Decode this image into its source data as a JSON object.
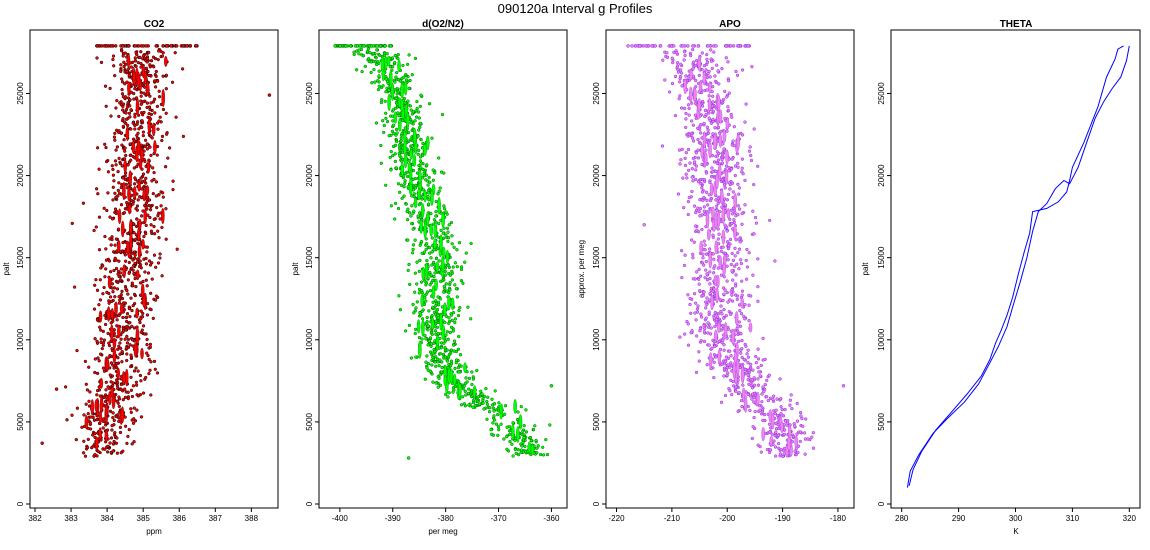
{
  "figure": {
    "title": "090120a   Interval g Profiles"
  },
  "chart_data": [
    {
      "type": "scatter",
      "title": "CO2",
      "xlabel": "ppm",
      "ylabel": "palt",
      "xlim": [
        382,
        388.6
      ],
      "ylim": [
        0,
        28500
      ],
      "xticks": [
        382,
        383,
        384,
        385,
        386,
        387,
        388
      ],
      "yticks": [
        0,
        5000,
        10000,
        15000,
        20000,
        25000
      ],
      "color": "#ff0000",
      "edge_color": "#000000",
      "grid": false,
      "n_points": 1200,
      "profile": [
        {
          "y": 28000,
          "x_center": 385.0,
          "x_spread": 0.9
        },
        {
          "y": 25000,
          "x_center": 384.9,
          "x_spread": 0.7
        },
        {
          "y": 20000,
          "x_center": 384.8,
          "x_spread": 0.75
        },
        {
          "y": 15000,
          "x_center": 384.6,
          "x_spread": 0.8
        },
        {
          "y": 10000,
          "x_center": 384.4,
          "x_spread": 0.8
        },
        {
          "y": 5000,
          "x_center": 384.0,
          "x_spread": 0.8
        },
        {
          "y": 3000,
          "x_center": 383.8,
          "x_spread": 0.6
        }
      ],
      "top_band": {
        "y": 27900,
        "x_range": [
          383.7,
          386.5
        ]
      },
      "outliers": [
        {
          "x": 388.5,
          "y": 24900
        },
        {
          "x": 382.2,
          "y": 3700
        },
        {
          "x": 382.6,
          "y": 7000
        }
      ]
    },
    {
      "type": "scatter",
      "title": "d(O2/N2)",
      "xlabel": "per meg",
      "ylabel": "palt",
      "xlim": [
        -403,
        -358
      ],
      "ylim": [
        0,
        28500
      ],
      "xticks": [
        -400,
        -390,
        -380,
        -370,
        -360
      ],
      "yticks": [
        0,
        5000,
        10000,
        15000,
        20000,
        25000
      ],
      "color": "#00ff00",
      "edge_color": "#006400",
      "grid": false,
      "n_points": 1200,
      "profile": [
        {
          "y": 28000,
          "x_center": -394,
          "x_spread": 5
        },
        {
          "y": 25000,
          "x_center": -389,
          "x_spread": 3.5
        },
        {
          "y": 20000,
          "x_center": -386,
          "x_spread": 4
        },
        {
          "y": 15000,
          "x_center": -381,
          "x_spread": 4.5
        },
        {
          "y": 10000,
          "x_center": -382,
          "x_spread": 4
        },
        {
          "y": 7500,
          "x_center": -379,
          "x_spread": 4
        },
        {
          "y": 5000,
          "x_center": -368,
          "x_spread": 4
        },
        {
          "y": 3000,
          "x_center": -364,
          "x_spread": 3
        }
      ],
      "top_band": {
        "y": 27900,
        "x_range": [
          -401,
          -390
        ]
      },
      "outliers": [
        {
          "x": -387,
          "y": 2800
        },
        {
          "x": -360,
          "y": 7200
        }
      ]
    },
    {
      "type": "scatter",
      "title": "APO",
      "xlabel": "",
      "ylabel": "approx. per meg",
      "xlim": [
        -221,
        -178
      ],
      "ylim": [
        0,
        28500
      ],
      "xticks": [
        -220,
        -210,
        -200,
        -190,
        -180
      ],
      "yticks": [
        0,
        5000,
        10000,
        15000,
        20000,
        25000
      ],
      "color": "#ee82ee",
      "edge_color": "#8a2be2",
      "grid": false,
      "n_points": 1200,
      "profile": [
        {
          "y": 28000,
          "x_center": -207,
          "x_spread": 6
        },
        {
          "y": 25000,
          "x_center": -204,
          "x_spread": 5
        },
        {
          "y": 20000,
          "x_center": -202,
          "x_spread": 5.5
        },
        {
          "y": 15000,
          "x_center": -201,
          "x_spread": 5.5
        },
        {
          "y": 10000,
          "x_center": -201,
          "x_spread": 5
        },
        {
          "y": 7000,
          "x_center": -196,
          "x_spread": 5
        },
        {
          "y": 4500,
          "x_center": -189,
          "x_spread": 5
        },
        {
          "y": 3000,
          "x_center": -190,
          "x_spread": 3
        }
      ],
      "top_band": {
        "y": 27900,
        "x_range": [
          -218,
          -196
        ]
      },
      "outliers": [
        {
          "x": -179,
          "y": 7200
        },
        {
          "x": -215,
          "y": 17000
        }
      ]
    },
    {
      "type": "line",
      "title": "THETA",
      "xlabel": "K",
      "ylabel": "palt",
      "xlim": [
        279,
        321
      ],
      "ylim": [
        0,
        28500
      ],
      "xticks": [
        280,
        290,
        300,
        310,
        320
      ],
      "yticks": [
        0,
        5000,
        10000,
        15000,
        20000,
        25000
      ],
      "color": "#0000ff",
      "grid": false,
      "series": [
        {
          "x": [
            281.0,
            281.5,
            283.0,
            285.5,
            288.0,
            291.0,
            293.5,
            295.5,
            297.0,
            298.5,
            299.5,
            300.8,
            302.0,
            303.0,
            304.0,
            305.5,
            307.0,
            308.5,
            309.5,
            311.0,
            312.5,
            314.0,
            315.5,
            317.0,
            318.5,
            319.5,
            320.0
          ],
          "y": [
            1000,
            2000,
            3000,
            4300,
            5200,
            6200,
            7300,
            8600,
            9600,
            10800,
            12000,
            13500,
            15000,
            16600,
            17800,
            18300,
            19200,
            19700,
            19500,
            20500,
            22000,
            23500,
            24500,
            25300,
            26000,
            27000,
            27900
          ]
        },
        {
          "x": [
            281.3,
            282.0,
            283.5,
            286.0,
            289.0,
            291.5,
            294.0,
            295.5,
            296.5,
            297.5,
            298.5,
            299.5,
            300.5,
            301.5,
            302.5,
            303.0,
            305.5,
            307.5,
            309.0,
            309.5,
            310.0,
            312.0,
            314.5,
            316.0,
            317.5,
            318.0,
            319.0
          ],
          "y": [
            1100,
            2100,
            3200,
            4500,
            5700,
            6700,
            7800,
            8800,
            9800,
            10600,
            11500,
            12600,
            14000,
            15300,
            16500,
            17800,
            18000,
            18400,
            19000,
            19700,
            20500,
            22000,
            24200,
            26000,
            27100,
            27700,
            27900
          ]
        }
      ]
    }
  ]
}
